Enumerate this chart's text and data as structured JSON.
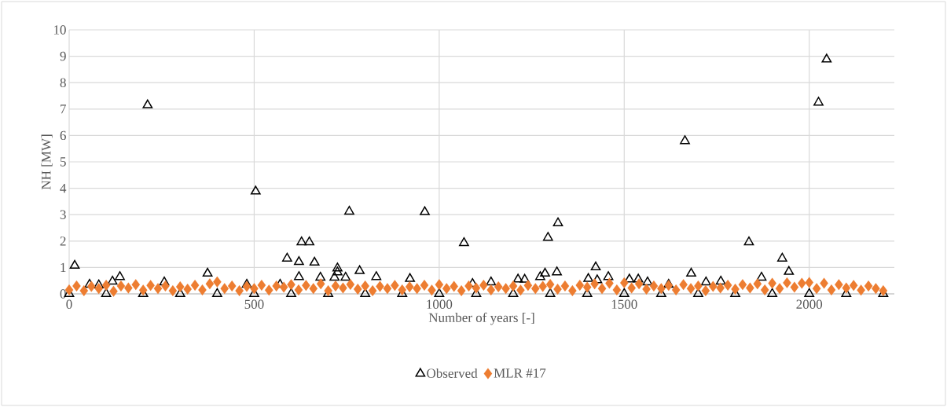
{
  "chart_data": {
    "type": "scatter",
    "xlabel": "Number of years [-]",
    "ylabel": "NH [MW]",
    "xlim": [
      0,
      2230
    ],
    "ylim": [
      0,
      10
    ],
    "xticks": [
      0,
      500,
      1000,
      1500,
      2000
    ],
    "yticks": [
      0,
      1,
      2,
      3,
      4,
      5,
      6,
      7,
      8,
      9,
      10
    ],
    "grid": true,
    "legend": "bottom",
    "series": [
      {
        "name": "Observed",
        "color": "#000000",
        "marker": "triangle",
        "x": [
          0,
          15,
          55,
          80,
          100,
          117,
          137,
          200,
          212,
          257,
          300,
          374,
          400,
          480,
          500,
          504,
          570,
          589,
          600,
          621,
          621,
          628,
          649,
          663,
          679,
          700,
          717,
          725,
          725,
          747,
          757,
          785,
          800,
          830,
          900,
          921,
          961,
          1000,
          1067,
          1090,
          1100,
          1140,
          1200,
          1213,
          1231,
          1273,
          1286,
          1294,
          1300,
          1318,
          1321,
          1400,
          1403,
          1423,
          1427,
          1457,
          1500,
          1514,
          1538,
          1563,
          1600,
          1620,
          1664,
          1681,
          1700,
          1721,
          1761,
          1800,
          1837,
          1871,
          1900,
          1927,
          1945,
          2000,
          2025,
          2047,
          2100,
          2200
        ],
        "values": [
          0,
          1.07,
          0.35,
          0.33,
          0,
          0.47,
          0.64,
          0,
          7.15,
          0.44,
          0,
          0.77,
          0,
          0.35,
          0,
          3.88,
          0.35,
          1.34,
          0,
          1.21,
          0.64,
          1.96,
          1.96,
          1.19,
          0.62,
          0,
          0.62,
          0.97,
          0.82,
          0.62,
          3.12,
          0.87,
          0,
          0.64,
          0,
          0.57,
          3.1,
          0,
          1.93,
          0.38,
          0,
          0.44,
          0,
          0.55,
          0.54,
          0.64,
          0.77,
          2.13,
          0,
          0.82,
          2.68,
          0,
          0.57,
          1.01,
          0.52,
          0.64,
          0,
          0.55,
          0.55,
          0.44,
          0,
          0.35,
          5.79,
          0.77,
          0,
          0.44,
          0.47,
          0,
          1.96,
          0.62,
          0,
          1.34,
          0.84,
          0,
          7.25,
          8.88,
          0,
          0
        ]
      },
      {
        "name": "MLR #17",
        "color": "#ed7d31",
        "marker": "diamond",
        "x": [
          0,
          20,
          40,
          60,
          80,
          100,
          120,
          140,
          160,
          180,
          200,
          220,
          240,
          260,
          280,
          300,
          320,
          340,
          360,
          380,
          400,
          420,
          440,
          460,
          480,
          500,
          520,
          540,
          560,
          580,
          600,
          620,
          640,
          660,
          680,
          700,
          720,
          740,
          760,
          780,
          800,
          820,
          840,
          860,
          880,
          900,
          920,
          940,
          960,
          980,
          1000,
          1020,
          1040,
          1060,
          1080,
          1100,
          1120,
          1140,
          1160,
          1180,
          1200,
          1220,
          1240,
          1260,
          1280,
          1300,
          1320,
          1340,
          1360,
          1380,
          1400,
          1420,
          1440,
          1460,
          1480,
          1500,
          1520,
          1540,
          1560,
          1580,
          1600,
          1620,
          1640,
          1660,
          1680,
          1700,
          1720,
          1740,
          1760,
          1780,
          1800,
          1820,
          1840,
          1860,
          1880,
          1900,
          1920,
          1940,
          1960,
          1980,
          2000,
          2020,
          2040,
          2060,
          2080,
          2100,
          2120,
          2140,
          2160,
          2180,
          2200
        ],
        "values": [
          0.15,
          0.3,
          0.12,
          0.28,
          0.2,
          0.33,
          0.1,
          0.3,
          0.22,
          0.35,
          0.14,
          0.32,
          0.2,
          0.3,
          0.12,
          0.27,
          0.18,
          0.33,
          0.15,
          0.38,
          0.45,
          0.2,
          0.3,
          0.12,
          0.28,
          0.2,
          0.33,
          0.14,
          0.3,
          0.25,
          0.35,
          0.15,
          0.32,
          0.2,
          0.38,
          0.12,
          0.3,
          0.22,
          0.36,
          0.18,
          0.3,
          0.12,
          0.28,
          0.2,
          0.32,
          0.15,
          0.27,
          0.2,
          0.33,
          0.14,
          0.35,
          0.2,
          0.28,
          0.12,
          0.3,
          0.22,
          0.33,
          0.15,
          0.27,
          0.2,
          0.3,
          0.14,
          0.32,
          0.2,
          0.28,
          0.36,
          0.18,
          0.3,
          0.12,
          0.33,
          0.25,
          0.38,
          0.2,
          0.4,
          0.15,
          0.42,
          0.22,
          0.38,
          0.18,
          0.3,
          0.2,
          0.32,
          0.15,
          0.35,
          0.2,
          0.3,
          0.12,
          0.28,
          0.22,
          0.33,
          0.18,
          0.35,
          0.22,
          0.38,
          0.15,
          0.4,
          0.2,
          0.42,
          0.25,
          0.4,
          0.43,
          0.2,
          0.4,
          0.15,
          0.35,
          0.22,
          0.32,
          0.14,
          0.3,
          0.2,
          0.12
        ]
      }
    ]
  }
}
